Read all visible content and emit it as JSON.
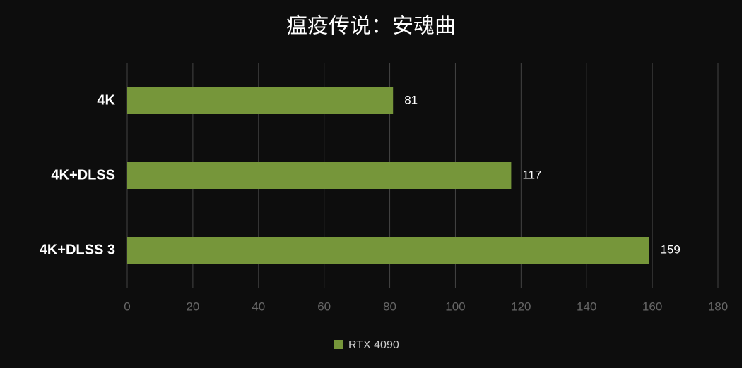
{
  "chart_data": {
    "type": "bar",
    "title": "瘟疫传说：安魂曲",
    "categories": [
      "4K",
      "4K+DLSS",
      "4K+DLSS 3"
    ],
    "series": [
      {
        "name": "RTX 4090",
        "color": "#76963a",
        "values": [
          81,
          117,
          159
        ]
      }
    ],
    "xlim": [
      0,
      180
    ],
    "xticks": [
      0,
      20,
      40,
      60,
      80,
      100,
      120,
      140,
      160,
      180
    ],
    "grid": true,
    "legend": "bottom"
  }
}
